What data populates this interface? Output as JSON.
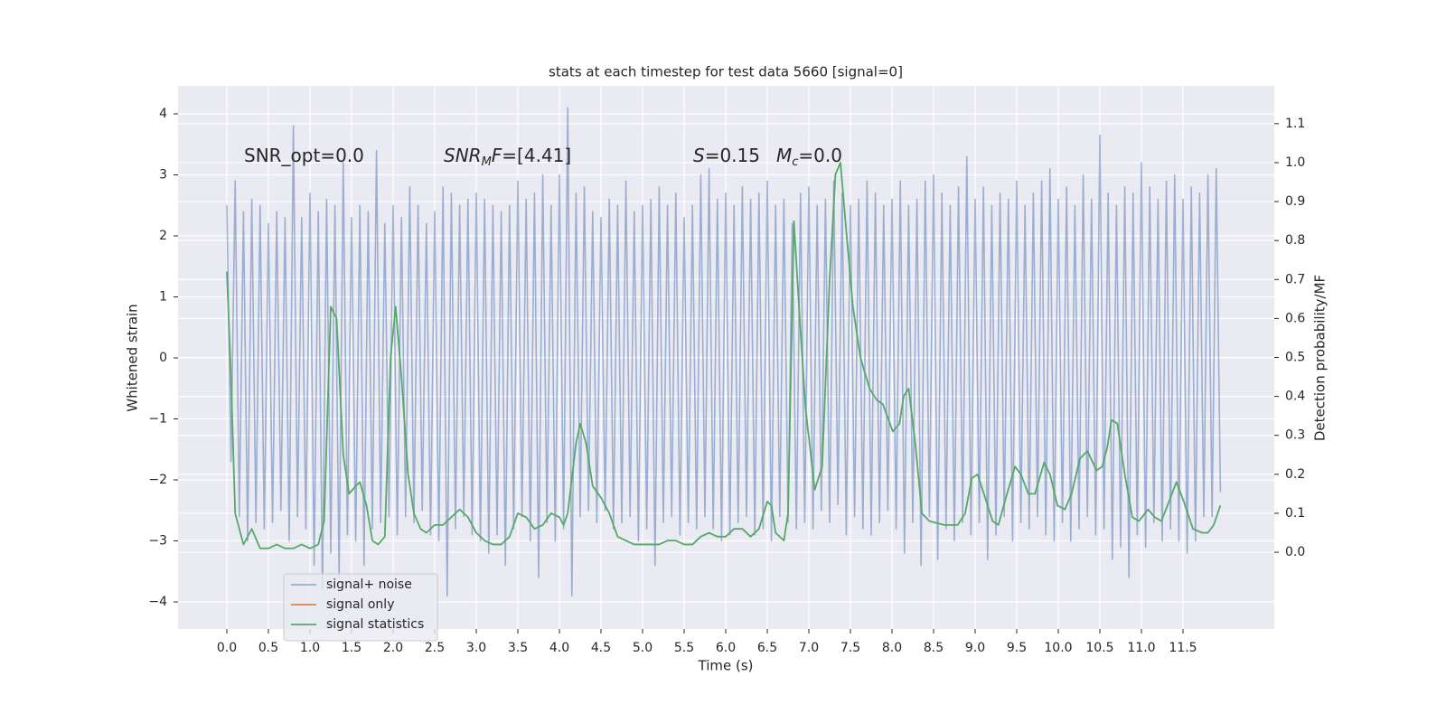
{
  "chart_data": {
    "type": "line",
    "title": "stats at each timestep for test data 5660 [signal=0]",
    "xlabel": "Time (s)",
    "ylabel": "Whitened strain",
    "y2label": "Detection probability/MF",
    "grid": true,
    "legend_loc": "lower left",
    "xlim": [
      -0.587,
      12.598
    ],
    "ylim": [
      -4.444,
      4.459
    ],
    "y2lim": [
      -0.197,
      1.197
    ],
    "xticks": [
      {
        "value": 0,
        "label": "0.0"
      },
      0.5,
      {
        "value": 1,
        "label": "1.0"
      },
      1.5,
      {
        "value": 2,
        "label": "2.0"
      },
      2.5,
      {
        "value": 3,
        "label": "3.0"
      },
      3.5,
      {
        "value": 4,
        "label": "4.0"
      },
      4.5,
      {
        "value": 5,
        "label": "5.0"
      },
      5.5,
      {
        "value": 6,
        "label": "6.0"
      },
      6.5,
      {
        "value": 7,
        "label": "7.0"
      },
      7.5,
      {
        "value": 8,
        "label": "8.0"
      },
      8.5,
      {
        "value": 9,
        "label": "9.0"
      },
      9.5,
      {
        "value": 10,
        "label": "10.0"
      },
      10.5,
      {
        "value": 11,
        "label": "11.0"
      },
      11.5
    ],
    "yticks": [
      {
        "value": -4,
        "label": "−4"
      },
      {
        "value": -3,
        "label": "−3"
      },
      {
        "value": -2,
        "label": "−2"
      },
      {
        "value": -1,
        "label": "−1"
      },
      0,
      1,
      2,
      3,
      4
    ],
    "y2ticks": [
      {
        "value": 0,
        "label": "0.0"
      },
      0.1,
      0.2,
      0.3,
      0.4,
      0.5,
      0.6,
      0.7,
      0.8,
      0.9,
      {
        "value": 1,
        "label": "1.0"
      },
      1.1
    ],
    "annotations": [
      {
        "segments": [
          {
            "text": "SNR_opt=0.0",
            "style": "normal"
          }
        ]
      },
      {
        "segments": [
          {
            "text": "SNR",
            "style": "italic"
          },
          {
            "text": "M",
            "style": "sub"
          },
          {
            "text": "F",
            "style": "italic"
          },
          {
            "text": "=[4.41]",
            "style": "normal"
          }
        ]
      },
      {
        "segments": [
          {
            "text": "S",
            "style": "italic"
          },
          {
            "text": "=0.15",
            "style": "normal"
          }
        ]
      },
      {
        "segments": [
          {
            "text": "M",
            "style": "italic"
          },
          {
            "text": "c",
            "style": "sub"
          },
          {
            "text": "=0.0",
            "style": "normal"
          }
        ]
      }
    ],
    "series": [
      {
        "name": "signal+ noise",
        "color": "#4c72b0",
        "opacity": 0.5,
        "axis": "y",
        "x": [
          0,
          0.05,
          0.1,
          0.15,
          0.2,
          0.25,
          0.3,
          0.35,
          0.4,
          0.45,
          0.5,
          0.55,
          0.6,
          0.65,
          0.7,
          0.75,
          0.8,
          0.85,
          0.9,
          0.95,
          1,
          1.05,
          1.1,
          1.15,
          1.2,
          1.25,
          1.3,
          1.35,
          1.4,
          1.45,
          1.5,
          1.55,
          1.6,
          1.65,
          1.7,
          1.75,
          1.8,
          1.85,
          1.9,
          1.95,
          2,
          2.05,
          2.1,
          2.15,
          2.2,
          2.25,
          2.3,
          2.35,
          2.4,
          2.45,
          2.5,
          2.55,
          2.6,
          2.65,
          2.7,
          2.75,
          2.8,
          2.85,
          2.9,
          2.95,
          3,
          3.05,
          3.1,
          3.15,
          3.2,
          3.25,
          3.3,
          3.35,
          3.4,
          3.45,
          3.5,
          3.55,
          3.6,
          3.65,
          3.7,
          3.75,
          3.8,
          3.85,
          3.9,
          3.95,
          4,
          4.05,
          4.1,
          4.15,
          4.2,
          4.25,
          4.3,
          4.35,
          4.4,
          4.45,
          4.5,
          4.55,
          4.6,
          4.65,
          4.7,
          4.75,
          4.8,
          4.85,
          4.9,
          4.95,
          5,
          5.05,
          5.1,
          5.15,
          5.2,
          5.25,
          5.3,
          5.35,
          5.4,
          5.45,
          5.5,
          5.55,
          5.6,
          5.65,
          5.7,
          5.75,
          5.8,
          5.85,
          5.9,
          5.95,
          6,
          6.05,
          6.1,
          6.15,
          6.2,
          6.25,
          6.3,
          6.35,
          6.4,
          6.45,
          6.5,
          6.55,
          6.6,
          6.65,
          6.7,
          6.75,
          6.8,
          6.85,
          6.9,
          6.95,
          7,
          7.05,
          7.1,
          7.15,
          7.2,
          7.25,
          7.3,
          7.35,
          7.4,
          7.45,
          7.5,
          7.55,
          7.6,
          7.65,
          7.7,
          7.75,
          7.8,
          7.85,
          7.9,
          7.95,
          8,
          8.05,
          8.1,
          8.15,
          8.2,
          8.25,
          8.3,
          8.35,
          8.4,
          8.45,
          8.5,
          8.55,
          8.6,
          8.65,
          8.7,
          8.75,
          8.8,
          8.85,
          8.9,
          8.95,
          9,
          9.05,
          9.1,
          9.15,
          9.2,
          9.25,
          9.3,
          9.35,
          9.4,
          9.45,
          9.5,
          9.55,
          9.6,
          9.65,
          9.7,
          9.75,
          9.8,
          9.85,
          9.9,
          9.95,
          10,
          10.05,
          10.1,
          10.15,
          10.2,
          10.25,
          10.3,
          10.35,
          10.4,
          10.45,
          10.5,
          10.55,
          10.6,
          10.65,
          10.7,
          10.75,
          10.8,
          10.85,
          10.9,
          10.95,
          11,
          11.05,
          11.1,
          11.15,
          11.2,
          11.25,
          11.3,
          11.35,
          11.4,
          11.45,
          11.5,
          11.55,
          11.6,
          11.65,
          11.7,
          11.75,
          11.8,
          11.85,
          11.9,
          11.95
        ],
        "values": [
          2.5,
          -1.7,
          2.9,
          -2.6,
          2.4,
          -3.0,
          2.6,
          -2.7,
          2.5,
          -2.8,
          2.2,
          -2.7,
          2.4,
          -2.5,
          2.3,
          -3.0,
          3.8,
          -2.6,
          2.3,
          -2.8,
          2.7,
          -3.4,
          2.4,
          -3.8,
          2.6,
          -3.2,
          2.5,
          -3.6,
          3.2,
          -2.9,
          2.3,
          -3.0,
          2.5,
          -3.4,
          2.4,
          -2.8,
          3.4,
          -2.7,
          2.2,
          -2.6,
          2.5,
          -2.9,
          2.3,
          -2.6,
          2.8,
          -2.7,
          2.5,
          -2.5,
          2.2,
          -2.9,
          2.4,
          -3.0,
          2.8,
          -3.9,
          2.7,
          -2.8,
          2.5,
          -2.6,
          2.6,
          -2.9,
          2.7,
          -3.0,
          2.6,
          -3.2,
          2.5,
          -2.9,
          2.4,
          -3.4,
          2.5,
          -2.8,
          2.9,
          -2.6,
          2.6,
          -3.0,
          2.7,
          -3.6,
          3.0,
          -2.7,
          2.5,
          -3.0,
          3.0,
          -2.8,
          4.1,
          -3.9,
          2.7,
          -2.6,
          2.8,
          -2.5,
          2.4,
          -2.7,
          2.3,
          -2.5,
          2.6,
          -2.8,
          2.5,
          -2.7,
          2.9,
          -2.6,
          2.4,
          -3.0,
          2.5,
          -2.8,
          2.6,
          -3.4,
          2.8,
          -2.7,
          2.5,
          -2.6,
          2.7,
          -2.9,
          2.3,
          -2.7,
          2.5,
          -2.8,
          3.0,
          -2.6,
          3.1,
          -2.8,
          2.6,
          -3.0,
          2.7,
          -2.9,
          2.5,
          -2.7,
          2.8,
          -2.6,
          2.6,
          -2.9,
          2.7,
          -2.8,
          2.9,
          -3.0,
          2.5,
          -2.6,
          2.6,
          -2.7,
          2.2,
          -2.8,
          2.7,
          -2.7,
          2.8,
          -2.8,
          2.5,
          -2.5,
          2.6,
          -2.7,
          2.9,
          -2.4,
          2.7,
          -2.9,
          2.5,
          -2.6,
          2.6,
          -2.8,
          2.9,
          -2.9,
          2.7,
          -2.7,
          2.5,
          -2.5,
          2.6,
          -2.8,
          2.9,
          -3.2,
          2.5,
          -2.7,
          2.6,
          -3.4,
          2.9,
          -2.6,
          3.0,
          -3.3,
          2.7,
          -2.8,
          2.5,
          -3.0,
          2.8,
          -2.7,
          3.3,
          -2.9,
          2.6,
          -2.7,
          2.8,
          -3.3,
          2.5,
          -2.9,
          2.7,
          -2.6,
          2.6,
          -3.0,
          2.9,
          -2.7,
          2.5,
          -2.8,
          2.7,
          -2.6,
          2.9,
          -2.9,
          3.1,
          -3.0,
          2.6,
          -2.7,
          2.8,
          -3.0,
          2.5,
          -2.8,
          3.0,
          -2.6,
          2.6,
          -2.9,
          3.65,
          -2.8,
          2.7,
          -3.3,
          2.5,
          -3.1,
          2.8,
          -3.6,
          2.7,
          -2.9,
          3.2,
          -3.1,
          2.8,
          -2.7,
          2.6,
          -3.0,
          2.9,
          -2.8,
          3.0,
          -3.0,
          2.6,
          -3.2,
          2.8,
          -3.0,
          2.7,
          -2.6,
          3.0,
          -2.6,
          3.1,
          -2.2
        ]
      },
      {
        "name": "signal only",
        "color": "#dd8452",
        "axis": "y",
        "x": [],
        "values": []
      },
      {
        "name": "signal statistics",
        "color": "#55a868",
        "axis": "y2",
        "x": [
          0,
          0.05,
          0.1,
          0.2,
          0.3,
          0.4,
          0.5,
          0.6,
          0.7,
          0.8,
          0.9,
          1,
          1.1,
          1.17,
          1.25,
          1.32,
          1.4,
          1.47,
          1.55,
          1.6,
          1.68,
          1.75,
          1.82,
          1.9,
          1.97,
          2.03,
          2.1,
          2.18,
          2.25,
          2.33,
          2.4,
          2.5,
          2.6,
          2.7,
          2.8,
          2.9,
          3,
          3.1,
          3.2,
          3.3,
          3.4,
          3.5,
          3.6,
          3.7,
          3.8,
          3.9,
          4,
          4.05,
          4.1,
          4.2,
          4.25,
          4.32,
          4.4,
          4.5,
          4.6,
          4.7,
          4.8,
          4.9,
          5,
          5.2,
          5.3,
          5.4,
          5.5,
          5.6,
          5.7,
          5.8,
          5.9,
          6,
          6.1,
          6.2,
          6.3,
          6.4,
          6.5,
          6.55,
          6.6,
          6.7,
          6.75,
          6.82,
          6.89,
          6.96,
          7.05,
          7.07,
          7.16,
          7.25,
          7.32,
          7.38,
          7.46,
          7.53,
          7.62,
          7.73,
          7.82,
          7.89,
          8.01,
          8.09,
          8.14,
          8.2,
          8.28,
          8.36,
          8.45,
          8.63,
          8.79,
          8.88,
          8.96,
          9.03,
          9.12,
          9.21,
          9.28,
          9.37,
          9.48,
          9.55,
          9.64,
          9.72,
          9.83,
          9.9,
          9.99,
          10.08,
          10.16,
          10.26,
          10.35,
          10.46,
          10.53,
          10.59,
          10.64,
          10.71,
          10.8,
          10.89,
          10.97,
          11.08,
          11.16,
          11.24,
          11.35,
          11.42,
          11.51,
          11.62,
          11.73,
          11.8,
          11.87,
          11.95
        ],
        "values": [
          0.72,
          0.45,
          0.1,
          0.02,
          0.06,
          0.01,
          0.01,
          0.02,
          0.01,
          0.01,
          0.02,
          0.01,
          0.02,
          0.08,
          0.63,
          0.6,
          0.25,
          0.15,
          0.17,
          0.18,
          0.12,
          0.03,
          0.02,
          0.04,
          0.5,
          0.63,
          0.45,
          0.2,
          0.1,
          0.06,
          0.05,
          0.07,
          0.07,
          0.09,
          0.11,
          0.09,
          0.05,
          0.03,
          0.02,
          0.02,
          0.04,
          0.1,
          0.09,
          0.06,
          0.07,
          0.1,
          0.09,
          0.07,
          0.1,
          0.28,
          0.33,
          0.28,
          0.17,
          0.14,
          0.1,
          0.04,
          0.03,
          0.02,
          0.02,
          0.02,
          0.03,
          0.03,
          0.02,
          0.02,
          0.04,
          0.05,
          0.04,
          0.04,
          0.06,
          0.06,
          0.04,
          0.06,
          0.13,
          0.12,
          0.05,
          0.03,
          0.1,
          0.85,
          0.6,
          0.37,
          0.2,
          0.16,
          0.22,
          0.7,
          0.97,
          1.0,
          0.8,
          0.63,
          0.5,
          0.42,
          0.39,
          0.38,
          0.31,
          0.33,
          0.4,
          0.42,
          0.28,
          0.1,
          0.08,
          0.07,
          0.07,
          0.1,
          0.19,
          0.2,
          0.14,
          0.08,
          0.07,
          0.14,
          0.22,
          0.2,
          0.15,
          0.15,
          0.23,
          0.2,
          0.12,
          0.11,
          0.15,
          0.24,
          0.26,
          0.21,
          0.22,
          0.27,
          0.34,
          0.33,
          0.2,
          0.09,
          0.08,
          0.11,
          0.09,
          0.08,
          0.14,
          0.18,
          0.13,
          0.06,
          0.05,
          0.05,
          0.07,
          0.12
        ]
      }
    ]
  }
}
